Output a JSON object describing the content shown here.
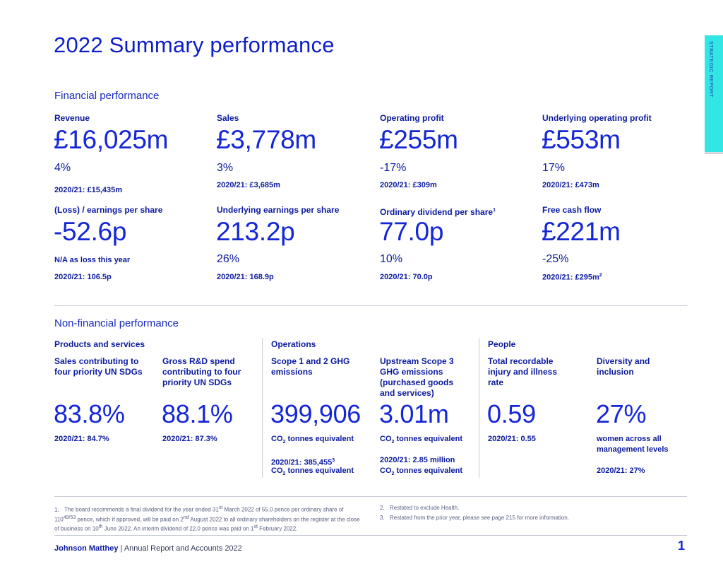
{
  "title": "2022 Summary performance",
  "side_tab": "STRATEGIC REPORT",
  "financial": {
    "heading": "Financial performance",
    "metrics": [
      {
        "label": "Revenue",
        "value": "£16,025m",
        "change": "4%",
        "prior": "2020/21: £15,435m"
      },
      {
        "label": "Sales",
        "value": "£3,778m",
        "change": "3%",
        "prior": "2020/21: £3,685m"
      },
      {
        "label": "Operating profit",
        "value": "£255m",
        "change": "-17%",
        "prior": "2020/21: £309m"
      },
      {
        "label": "Underlying operating profit",
        "value": "£553m",
        "change": "17%",
        "prior": "2020/21: £473m"
      },
      {
        "label": "(Loss) / earnings per share",
        "value": "-52.6p",
        "change": "N/A as loss this year",
        "prior": "2020/21: 106.5p"
      },
      {
        "label": "Underlying earnings per share",
        "value": "213.2p",
        "change": "26%",
        "prior": "2020/21: 168.9p"
      },
      {
        "label": "Ordinary dividend per share",
        "label_sup": "1",
        "value": "77.0p",
        "change": "10%",
        "prior": "2020/21: 70.0p"
      },
      {
        "label": "Free cash flow",
        "value": "£221m",
        "change": "-25%",
        "prior": "2020/21: £295m",
        "prior_sup": "2"
      }
    ]
  },
  "nonfinancial": {
    "heading": "Non-financial performance",
    "groups": [
      "Products and services",
      "Operations",
      "People"
    ],
    "metrics": [
      {
        "label": "Sales contributing to four priority UN SDGs",
        "value": "83.8%",
        "note": "2020/21: 84.7%"
      },
      {
        "label": "Gross R&D spend contributing to four priority UN SDGs",
        "value": "88.1%",
        "note": "2020/21: 87.3%"
      },
      {
        "label": "Scope 1 and 2 GHG emissions",
        "value": "399,906",
        "unit_pre": "CO",
        "unit_sub": "2",
        "unit_post": " tonnes equivalent",
        "prior": "2020/21: 385,455",
        "prior_sup": "3",
        "prior2_pre": "CO",
        "prior2_sub": "2",
        "prior2_post": " tonnes equivalent"
      },
      {
        "label": "Upstream Scope 3 GHG emissions (purchased goods and services)",
        "value": "3.01m",
        "unit_pre": "CO",
        "unit_sub": "2",
        "unit_post": " tonnes equivalent",
        "prior": "2020/21: 2.85 million",
        "prior2_pre": "CO",
        "prior2_sub": "2",
        "prior2_post": " tonnes equivalent"
      },
      {
        "label": "Total recordable injury and illness rate",
        "value": "0.59",
        "note": "2020/21: 0.55"
      },
      {
        "label": "Diversity and inclusion",
        "value": "27%",
        "note": "women across all management levels",
        "prior": "2020/21: 27%"
      }
    ]
  },
  "footnotes": {
    "f1_num": "1.",
    "f1_a": "The board recommends a final dividend for the year ended 31",
    "f1_a_sup": "st",
    "f1_b": " March 2022 of 55.0 pence per ordinary share of 110",
    "f1_b_sup": "49/53",
    "f1_c": " pence, which if approved, will be paid on 2",
    "f1_c_sup": "nd",
    "f1_d": " August 2022 to all ordinary shareholders on the register at the close of business on 10",
    "f1_d_sup": "th",
    "f1_e": " June 2022. An interim dividend of 22.0 pence was paid on 1",
    "f1_e_sup": "st",
    "f1_f": " February 2022.",
    "f2_num": "2.",
    "f2": "Restated to exclude Health.",
    "f3_num": "3.",
    "f3": "Restated from the prior year, please see page 215 for more information."
  },
  "footer": {
    "company": "Johnson Matthey",
    "separator": " | ",
    "doc": "Annual Report and Accounts 2022",
    "page": "1"
  },
  "colors": {
    "accent": "#1426d6",
    "tab": "#33e6e6",
    "rule": "#c9ccd6"
  }
}
